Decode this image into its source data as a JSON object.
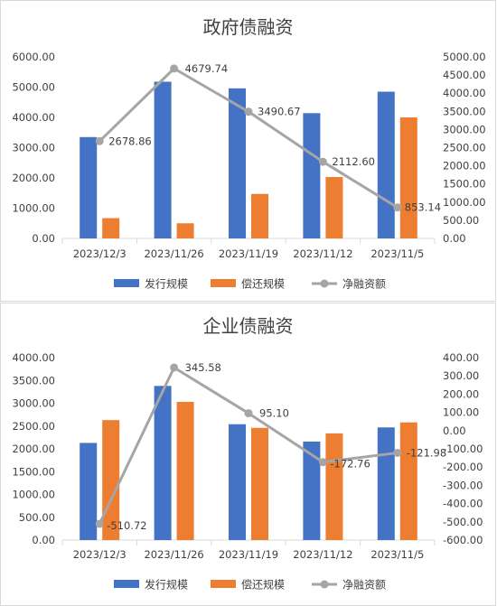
{
  "colors": {
    "issue": "#4472C4",
    "repay": "#ED7D31",
    "net": "#A5A5A5",
    "axis": "#d9d9d9",
    "text": "#404040"
  },
  "legend": {
    "issue_label": "发行规模",
    "repay_label": "偿还规模",
    "net_label": "净融资额"
  },
  "chart_data": [
    {
      "type": "bar+line",
      "title": "政府债融资",
      "categories": [
        "2023/12/3",
        "2023/11/26",
        "2023/11/19",
        "2023/11/12",
        "2023/11/5"
      ],
      "series": [
        {
          "name": "发行规模",
          "type": "bar",
          "axis": "left",
          "values": [
            3350,
            5180,
            4960,
            4140,
            4850
          ]
        },
        {
          "name": "偿还规模",
          "type": "bar",
          "axis": "left",
          "values": [
            670,
            500,
            1470,
            2030,
            4000
          ]
        },
        {
          "name": "净融资额",
          "type": "line",
          "axis": "right",
          "values": [
            2678.86,
            4679.74,
            3490.67,
            2112.6,
            853.14
          ],
          "labels": [
            "2678.86",
            "4679.74",
            "3490.67",
            "2112.60",
            "853.14"
          ]
        }
      ],
      "y_left": {
        "min": 0,
        "max": 6000,
        "ticks": [
          "0.00",
          "1000.00",
          "2000.00",
          "3000.00",
          "4000.00",
          "5000.00",
          "6000.00"
        ]
      },
      "y_right": {
        "min": 0,
        "max": 5000,
        "ticks": [
          "0.00",
          "500.00",
          "1000.00",
          "1500.00",
          "2000.00",
          "2500.00",
          "3000.00",
          "3500.00",
          "4000.00",
          "4500.00",
          "5000.00"
        ]
      },
      "grid": false,
      "legend_position": "bottom"
    },
    {
      "type": "bar+line",
      "title": "企业债融资",
      "categories": [
        "2023/12/3",
        "2023/11/26",
        "2023/11/19",
        "2023/11/12",
        "2023/11/5"
      ],
      "series": [
        {
          "name": "发行规模",
          "type": "bar",
          "axis": "left",
          "values": [
            2130,
            3380,
            2540,
            2160,
            2470
          ]
        },
        {
          "name": "偿还规模",
          "type": "bar",
          "axis": "left",
          "values": [
            2630,
            3030,
            2460,
            2340,
            2580
          ]
        },
        {
          "name": "净融资额",
          "type": "line",
          "axis": "right",
          "values": [
            -510.72,
            345.58,
            95.1,
            -172.76,
            -121.98
          ],
          "labels": [
            "-510.72",
            "345.58",
            "95.10",
            "-172.76",
            "-121.98"
          ]
        }
      ],
      "y_left": {
        "min": 0,
        "max": 4000,
        "ticks": [
          "0.00",
          "500.00",
          "1000.00",
          "1500.00",
          "2000.00",
          "2500.00",
          "3000.00",
          "3500.00",
          "4000.00"
        ]
      },
      "y_right": {
        "min": -600,
        "max": 400,
        "ticks": [
          "-600.00",
          "-500.00",
          "-400.00",
          "-300.00",
          "-200.00",
          "-100.00",
          "0.00",
          "100.00",
          "200.00",
          "300.00",
          "400.00"
        ]
      },
      "grid": false,
      "legend_position": "bottom"
    }
  ]
}
